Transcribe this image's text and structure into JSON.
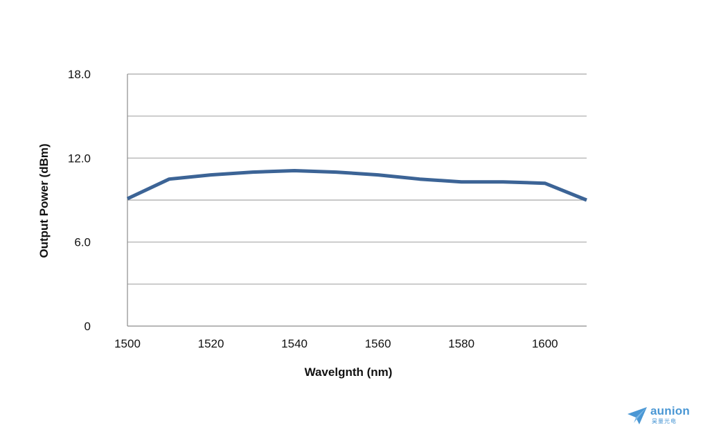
{
  "chart_data": {
    "type": "line",
    "xlabel": "Wavelgnth (nm)",
    "ylabel": "Output Power (dBm)",
    "xlim": [
      1500,
      1610
    ],
    "ylim": [
      0,
      18
    ],
    "x_ticks": [
      "1500",
      "1520",
      "1540",
      "1560",
      "1580",
      "1600"
    ],
    "x_tick_values": [
      1500,
      1520,
      1540,
      1560,
      1580,
      1600
    ],
    "y_ticks": [
      "0",
      "6.0",
      "12.0",
      "18.0"
    ],
    "y_tick_values": [
      0,
      6,
      12,
      18
    ],
    "y_gridlines": [
      3,
      6,
      9,
      12,
      15,
      18
    ],
    "grid": true,
    "series": [
      {
        "x": [
          1500,
          1510,
          1520,
          1530,
          1540,
          1550,
          1560,
          1570,
          1580,
          1590,
          1600,
          1610
        ],
        "values": [
          9.1,
          10.5,
          10.8,
          11.0,
          11.1,
          11.0,
          10.8,
          10.5,
          10.3,
          10.3,
          10.2,
          9.0
        ],
        "color": "#3c6496"
      }
    ]
  },
  "logo": {
    "word": "aunion",
    "sub": "昊量光电",
    "color": "#4a97d4"
  }
}
